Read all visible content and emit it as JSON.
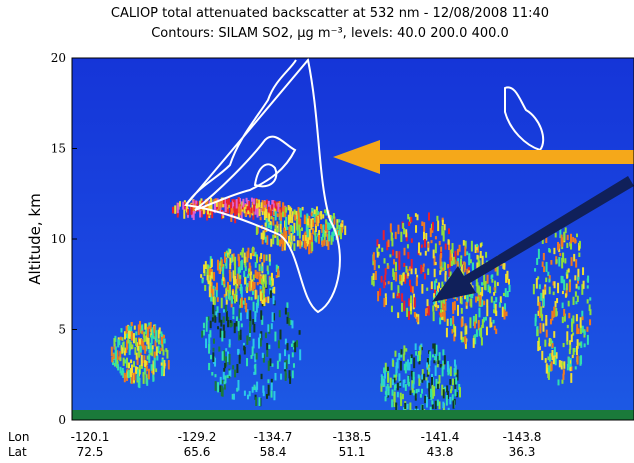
{
  "chart_data": {
    "type": "curtain",
    "title": "CALIOP total attenuated backscatter at 532 nm - 12/08/2008 11:40",
    "subtitle": "Contours: SILAM SO2, μg m⁻³, levels: 40.0 200.0 400.0",
    "ylabel": "Altitude, km",
    "ylim": [
      0,
      20
    ],
    "yticks": [
      0,
      5,
      10,
      15,
      20
    ],
    "x_rows": [
      {
        "label": "Lon",
        "values": [
          -120.1,
          -129.2,
          -134.7,
          -138.5,
          -141.4,
          -143.8
        ]
      },
      {
        "label": "Lat",
        "values": [
          72.5,
          65.6,
          58.4,
          51.1,
          43.8,
          36.3
        ]
      }
    ]
  }
}
